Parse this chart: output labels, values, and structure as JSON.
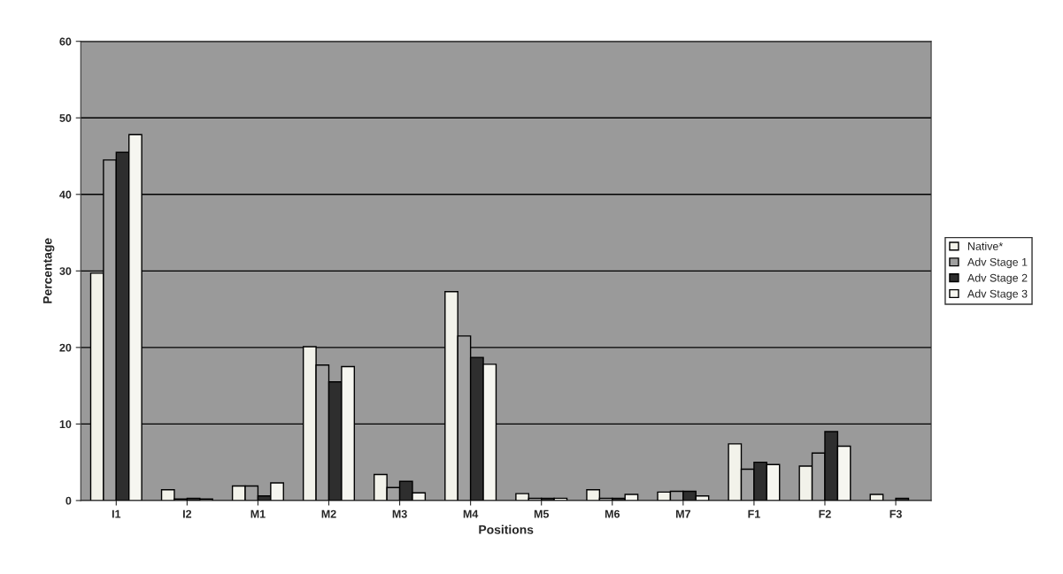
{
  "chart_data": {
    "type": "bar",
    "xlabel": "Positions",
    "ylabel": "Percentage",
    "categories": [
      "I1",
      "I2",
      "M1",
      "M2",
      "M3",
      "M4",
      "M5",
      "M6",
      "M7",
      "F1",
      "F2",
      "F3"
    ],
    "series": [
      {
        "name": "Native*",
        "color": "#f2f2ea",
        "values": [
          29.7,
          1.4,
          1.9,
          20.1,
          3.4,
          27.3,
          0.9,
          1.4,
          1.1,
          7.4,
          4.5,
          0.8
        ]
      },
      {
        "name": "Adv Stage 1",
        "color": "#a0a0a0",
        "values": [
          44.5,
          0.2,
          1.9,
          17.7,
          1.7,
          21.5,
          0.3,
          0.3,
          1.2,
          4.1,
          6.2,
          null
        ]
      },
      {
        "name": "Adv Stage 2",
        "color": "#2e2e2e",
        "values": [
          45.5,
          0.3,
          0.6,
          15.5,
          2.5,
          18.7,
          0.3,
          0.3,
          1.2,
          5.0,
          9.0,
          0.3
        ]
      },
      {
        "name": "Adv Stage 3",
        "color": "#f6f6f0",
        "values": [
          47.8,
          0.2,
          2.3,
          17.5,
          1.0,
          17.8,
          0.3,
          0.8,
          0.6,
          4.7,
          7.1,
          null
        ]
      }
    ],
    "ylim": [
      0,
      60
    ],
    "yticks": [
      0,
      10,
      20,
      30,
      40,
      50,
      60
    ],
    "grid": "y",
    "legend": "right"
  }
}
